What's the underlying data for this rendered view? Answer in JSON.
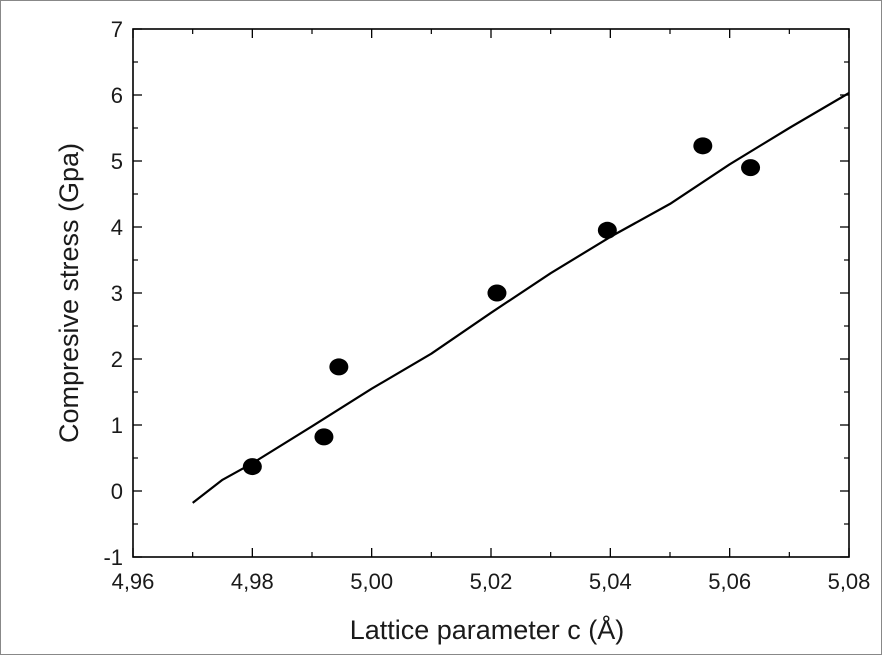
{
  "chart_data": {
    "type": "scatter",
    "xlabel": "Lattice parameter c (Å)",
    "ylabel": "Compresive stress (Gpa)",
    "xlim": [
      4.96,
      5.08
    ],
    "ylim": [
      -1,
      7
    ],
    "x_ticks": [
      "4,96",
      "4,98",
      "5,00",
      "5,02",
      "5,04",
      "5,06",
      "5,08"
    ],
    "x_tick_values": [
      4.96,
      4.98,
      5.0,
      5.02,
      5.04,
      5.06,
      5.08
    ],
    "y_ticks": [
      "-1",
      "0",
      "1",
      "2",
      "3",
      "4",
      "5",
      "6",
      "7"
    ],
    "y_tick_values": [
      -1,
      0,
      1,
      2,
      3,
      4,
      5,
      6,
      7
    ],
    "grid": false,
    "series": [
      {
        "kind": "points",
        "marker": "filled-ellipse",
        "color": "#000000",
        "x": [
          4.98,
          4.992,
          4.9945,
          5.021,
          5.0395,
          5.0555,
          5.0635
        ],
        "y": [
          0.37,
          0.82,
          1.88,
          3.0,
          3.95,
          5.23,
          4.9
        ]
      },
      {
        "kind": "line",
        "color": "#000000",
        "x": [
          4.97,
          4.975,
          4.98,
          4.99,
          5.0,
          5.01,
          5.02,
          5.03,
          5.04,
          5.05,
          5.06,
          5.07,
          5.08
        ],
        "y": [
          -0.18,
          0.17,
          0.42,
          0.98,
          1.55,
          2.08,
          2.7,
          3.3,
          3.85,
          4.35,
          4.95,
          5.5,
          6.03
        ]
      }
    ]
  }
}
